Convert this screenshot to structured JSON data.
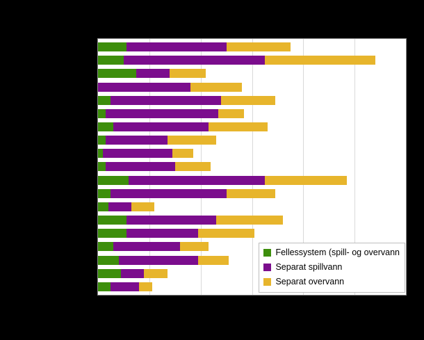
{
  "page": {
    "background": "#000000",
    "plot_background": "#ffffff",
    "gridline_color": "#d9d9d9",
    "plot_border_color": "#898989"
  },
  "legend": {
    "items": [
      {
        "label": "Fellessystem (spill- og overvann",
        "color": "#3d8e0c",
        "icon": "green-swatch"
      },
      {
        "label": "Separat spillvann",
        "color": "#7b0d8d",
        "icon": "purple-swatch"
      },
      {
        "label": "Separat overvann",
        "color": "#e7b52c",
        "icon": "yellow-swatch"
      }
    ]
  },
  "chart_data": {
    "type": "bar",
    "orientation": "horizontal",
    "stacked": true,
    "title": "",
    "xlabel": "",
    "ylabel": "",
    "xlim": [
      0,
      60
    ],
    "gridline_step": 10,
    "grid": true,
    "legend_position": "inside-bottom-right",
    "categories": [
      "",
      "",
      "",
      "",
      "",
      "",
      "",
      "",
      "",
      "",
      "",
      "",
      "",
      "",
      "",
      "",
      "",
      "",
      ""
    ],
    "series": [
      {
        "name": "Fellessystem (spill- og overvann",
        "color": "#3d8e0c",
        "values": [
          5.5,
          5,
          7.5,
          0,
          2.5,
          1.5,
          3,
          1.5,
          1,
          1.5,
          6,
          2.5,
          2,
          5.5,
          5.5,
          3,
          4,
          4.5,
          2.5
        ]
      },
      {
        "name": "Separat spillvann",
        "color": "#7b0d8d",
        "values": [
          19.5,
          27.5,
          6.5,
          18,
          21.5,
          22,
          18.5,
          12,
          13.5,
          13.5,
          26.5,
          22.5,
          4.5,
          17.5,
          14,
          13,
          15.5,
          4.5,
          5.5
        ]
      },
      {
        "name": "Separat overvann",
        "color": "#e7b52c",
        "values": [
          12.5,
          21.5,
          7,
          10,
          10.5,
          5,
          11.5,
          9.5,
          4,
          7,
          16,
          9.5,
          4.5,
          13,
          11,
          5.5,
          6,
          4.5,
          2.5
        ]
      }
    ]
  }
}
